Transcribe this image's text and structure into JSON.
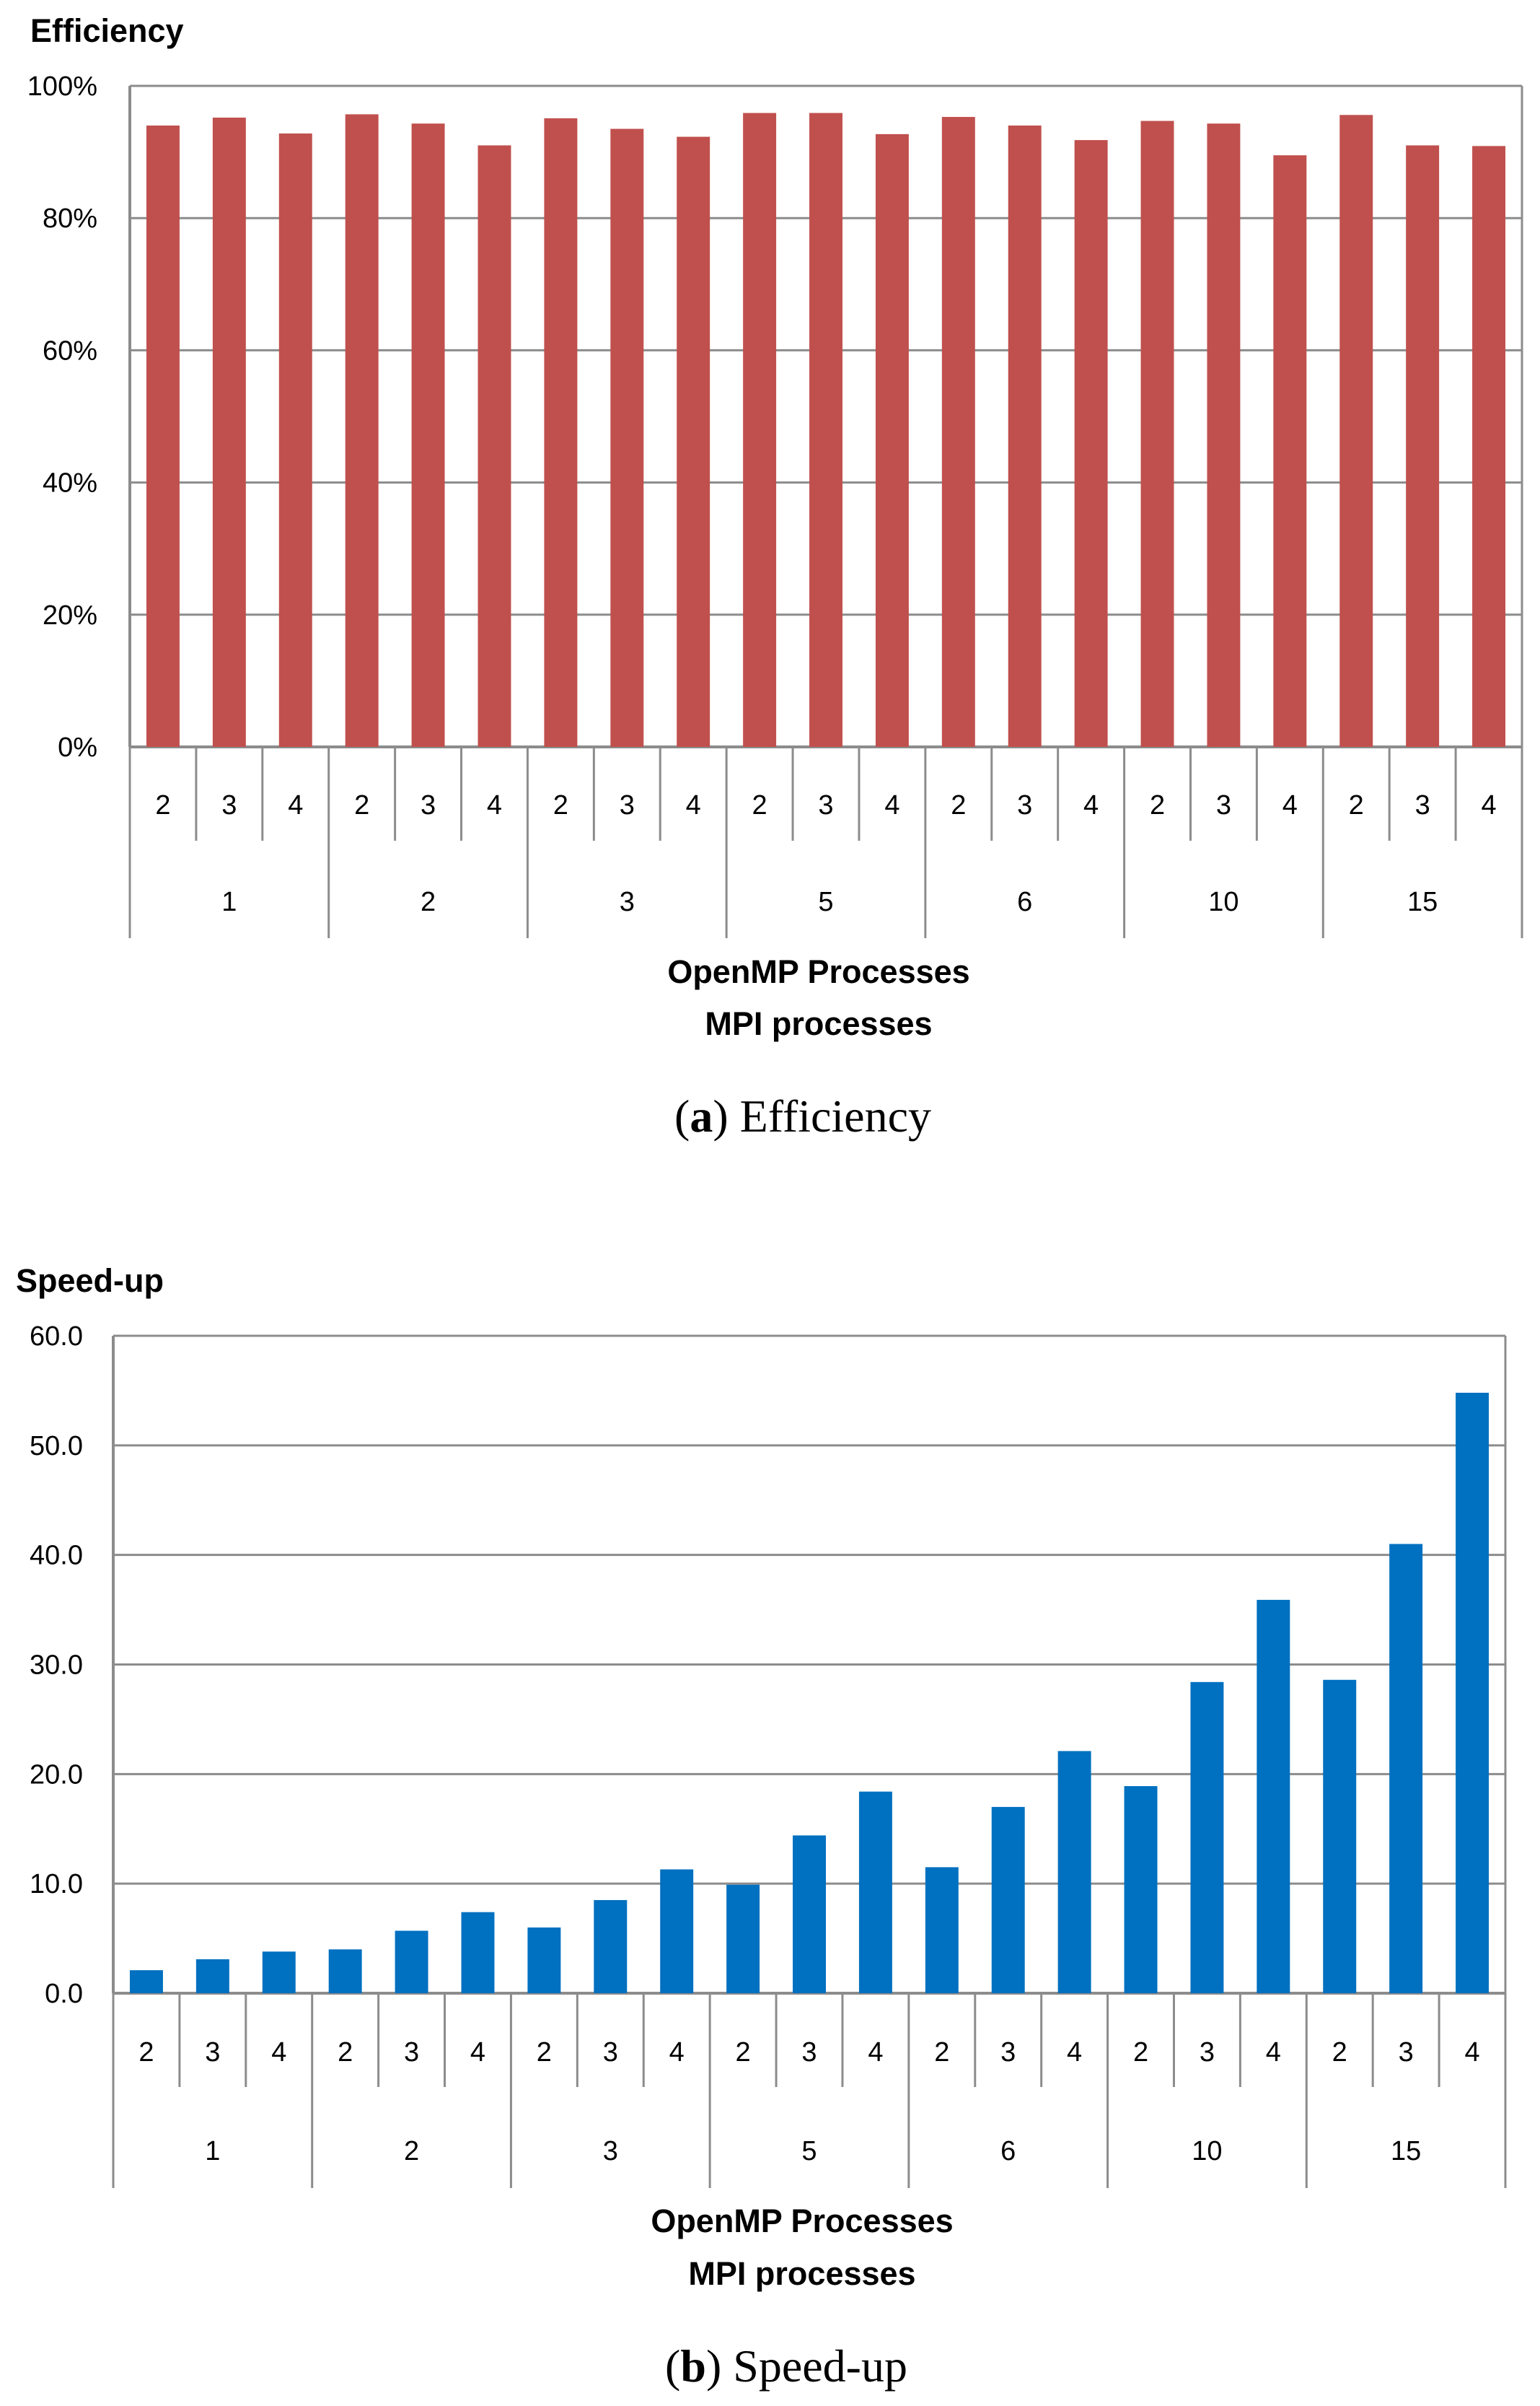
{
  "figure": {
    "captions": [
      {
        "label": "a",
        "text": "Efficiency"
      },
      {
        "label": "b",
        "text": "Speed-up"
      }
    ]
  },
  "chart_data": [
    {
      "type": "bar",
      "title": "Efficiency",
      "xlabel": "OpenMP Processes",
      "xlabel2": "MPI processes",
      "ylabel": "",
      "ylim": [
        0,
        100
      ],
      "yticks": [
        0,
        20,
        40,
        60,
        80,
        100
      ],
      "ytick_labels": [
        "0%",
        "20%",
        "40%",
        "60%",
        "80%",
        "100%"
      ],
      "grid": true,
      "color": "#C0504D",
      "groups": [
        "1",
        "2",
        "3",
        "5",
        "6",
        "10",
        "15"
      ],
      "categories": [
        "2",
        "3",
        "4",
        "2",
        "3",
        "4",
        "2",
        "3",
        "4",
        "2",
        "3",
        "4",
        "2",
        "3",
        "4",
        "2",
        "3",
        "4",
        "2",
        "3",
        "4"
      ],
      "values": [
        94,
        95.2,
        92.8,
        95.7,
        94.3,
        91,
        95.1,
        93.5,
        92.3,
        95.9,
        95.9,
        92.7,
        95.3,
        94,
        91.8,
        94.7,
        94.3,
        89.5,
        95.6,
        91,
        90.9
      ]
    },
    {
      "type": "bar",
      "title": "Speed-up",
      "xlabel": "OpenMP Processes",
      "xlabel2": "MPI processes",
      "ylabel": "",
      "ylim": [
        0,
        60
      ],
      "yticks": [
        0,
        10,
        20,
        30,
        40,
        50,
        60
      ],
      "ytick_labels": [
        "0.0",
        "10.0",
        "20.0",
        "30.0",
        "40.0",
        "50.0",
        "60.0"
      ],
      "grid": true,
      "color": "#0070C0",
      "groups": [
        "1",
        "2",
        "3",
        "5",
        "6",
        "10",
        "15"
      ],
      "categories": [
        "2",
        "3",
        "4",
        "2",
        "3",
        "4",
        "2",
        "3",
        "4",
        "2",
        "3",
        "4",
        "2",
        "3",
        "4",
        "2",
        "3",
        "4",
        "2",
        "3",
        "4"
      ],
      "values": [
        2.1,
        3.1,
        3.8,
        4.0,
        5.7,
        7.4,
        6.0,
        8.5,
        11.3,
        9.9,
        14.4,
        18.4,
        11.5,
        17.0,
        22.1,
        18.9,
        28.4,
        35.9,
        28.6,
        41.0,
        54.8
      ]
    }
  ]
}
